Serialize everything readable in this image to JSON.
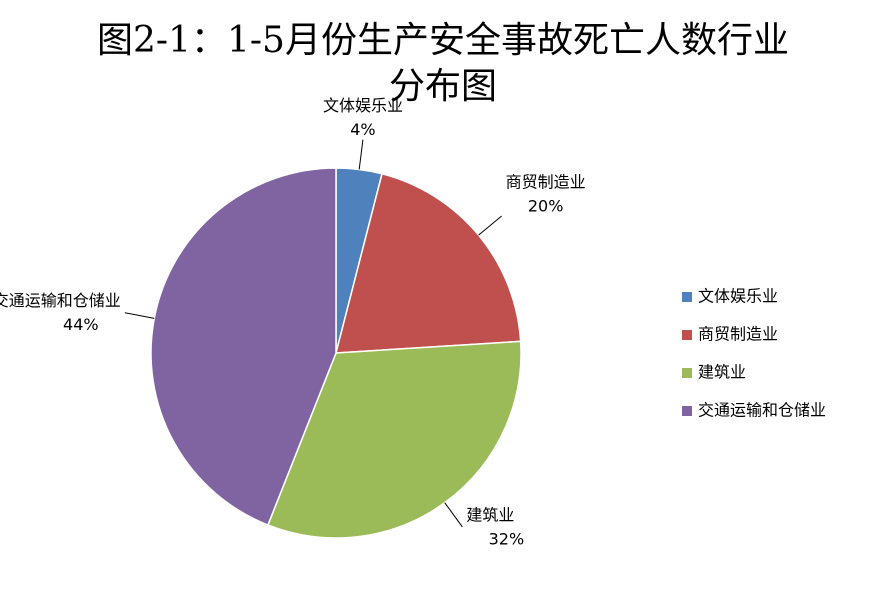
{
  "chart_data": {
    "type": "pie",
    "title": "图2-1：1-5月份生产安全事故死亡人数行业分布图",
    "categories": [
      "文体娱乐业",
      "商贸制造业",
      "建筑业",
      "交通运输和仓储业"
    ],
    "values": [
      4,
      20,
      32,
      44
    ],
    "value_labels": [
      "4%",
      "20%",
      "32%",
      "44%"
    ],
    "colors": [
      "#4f81bd",
      "#c0504d",
      "#9bbb59",
      "#8064a2"
    ],
    "legend": "right"
  }
}
